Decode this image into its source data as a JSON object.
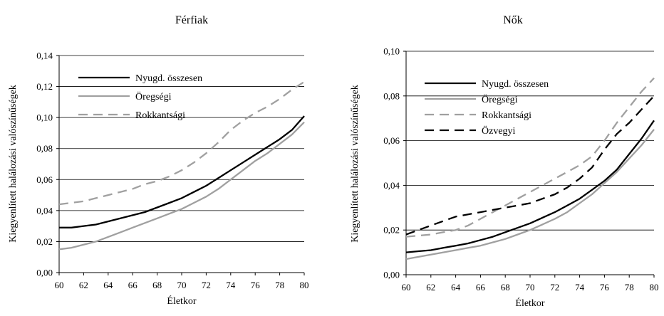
{
  "chart_data": [
    {
      "type": "line",
      "title": "Férfiak",
      "xlabel": "Életkor",
      "ylabel": "Kiegyenlített halálozási valószínűségek",
      "xlim": [
        60,
        80
      ],
      "ylim": [
        0,
        0.14
      ],
      "xticks": [
        60,
        62,
        64,
        66,
        68,
        70,
        72,
        74,
        76,
        78,
        80
      ],
      "yticks": [
        "0,00",
        "0,02",
        "0,04",
        "0,06",
        "0,08",
        "0,10",
        "0,12",
        "0,14"
      ],
      "grid": "horizontal",
      "legend": "top-left",
      "x": [
        60,
        61,
        62,
        63,
        64,
        65,
        66,
        67,
        68,
        69,
        70,
        71,
        72,
        73,
        74,
        75,
        76,
        77,
        78,
        79,
        80
      ],
      "series": [
        {
          "name": "Nyugd. összesen",
          "color": "#000000",
          "dash": "solid",
          "values": [
            0.029,
            0.029,
            0.03,
            0.031,
            0.033,
            0.035,
            0.037,
            0.039,
            0.042,
            0.045,
            0.048,
            0.052,
            0.056,
            0.061,
            0.066,
            0.071,
            0.076,
            0.081,
            0.086,
            0.092,
            0.101
          ]
        },
        {
          "name": "Öregségi",
          "color": "#a0a0a0",
          "dash": "solid",
          "values": [
            0.015,
            0.016,
            0.018,
            0.02,
            0.023,
            0.026,
            0.029,
            0.032,
            0.035,
            0.038,
            0.041,
            0.045,
            0.049,
            0.054,
            0.06,
            0.066,
            0.072,
            0.077,
            0.083,
            0.089,
            0.097
          ]
        },
        {
          "name": "Rokkantsági",
          "color": "#a0a0a0",
          "dash": "dashed",
          "values": [
            0.044,
            0.045,
            0.046,
            0.048,
            0.05,
            0.052,
            0.054,
            0.057,
            0.059,
            0.062,
            0.066,
            0.071,
            0.077,
            0.084,
            0.092,
            0.098,
            0.103,
            0.107,
            0.112,
            0.118,
            0.123
          ]
        }
      ]
    },
    {
      "type": "line",
      "title": "Nők",
      "xlabel": "Életkor",
      "ylabel": "Kiegyenlített halálozási valószínűségek",
      "xlim": [
        60,
        80
      ],
      "ylim": [
        0,
        0.1
      ],
      "xticks": [
        60,
        62,
        64,
        66,
        68,
        70,
        72,
        74,
        76,
        78,
        80
      ],
      "yticks": [
        "0,00",
        "0,02",
        "0,04",
        "0,06",
        "0,08",
        "0,10"
      ],
      "grid": "horizontal",
      "legend": "top-left",
      "x": [
        60,
        61,
        62,
        63,
        64,
        65,
        66,
        67,
        68,
        69,
        70,
        71,
        72,
        73,
        74,
        75,
        76,
        77,
        78,
        79,
        80
      ],
      "series": [
        {
          "name": "Nyugd. összesen",
          "color": "#000000",
          "dash": "solid",
          "values": [
            0.01,
            0.0105,
            0.011,
            0.012,
            0.013,
            0.014,
            0.0155,
            0.017,
            0.019,
            0.021,
            0.023,
            0.0255,
            0.028,
            0.031,
            0.034,
            0.038,
            0.042,
            0.047,
            0.054,
            0.061,
            0.069
          ]
        },
        {
          "name": "Öregségi",
          "color": "#a0a0a0",
          "dash": "solid",
          "values": [
            0.007,
            0.008,
            0.009,
            0.01,
            0.011,
            0.012,
            0.013,
            0.0145,
            0.016,
            0.018,
            0.02,
            0.0225,
            0.025,
            0.028,
            0.032,
            0.036,
            0.041,
            0.046,
            0.052,
            0.058,
            0.065
          ]
        },
        {
          "name": "Rokkantsági",
          "color": "#a0a0a0",
          "dash": "dashed",
          "values": [
            0.017,
            0.0175,
            0.018,
            0.019,
            0.02,
            0.022,
            0.025,
            0.028,
            0.031,
            0.034,
            0.037,
            0.04,
            0.043,
            0.046,
            0.049,
            0.053,
            0.06,
            0.068,
            0.075,
            0.082,
            0.088
          ]
        },
        {
          "name": "Özvegyi",
          "color": "#000000",
          "dash": "dashed",
          "values": [
            0.018,
            0.02,
            0.022,
            0.024,
            0.026,
            0.027,
            0.028,
            0.029,
            0.03,
            0.031,
            0.032,
            0.034,
            0.036,
            0.039,
            0.043,
            0.048,
            0.056,
            0.063,
            0.068,
            0.074,
            0.08
          ]
        }
      ]
    }
  ]
}
